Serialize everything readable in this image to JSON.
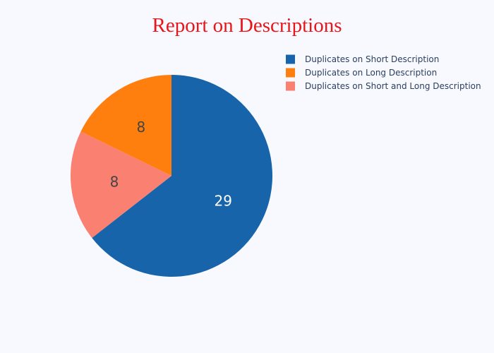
{
  "chart_data": {
    "type": "pie",
    "title": "Report on Descriptions",
    "labels": [
      "Duplicates on Short Description",
      "Duplicates on Long Description",
      "Duplicates on Short and Long Description"
    ],
    "values": [
      29,
      8,
      8
    ],
    "slice_order_clockwise_from_top": [
      0,
      2,
      1
    ],
    "colors": [
      "#1764ab",
      "#ff7f0e",
      "#fa8072"
    ],
    "label_colors": [
      "#ffffff",
      "#444444",
      "#444444"
    ],
    "legend_placement": "top-right"
  }
}
